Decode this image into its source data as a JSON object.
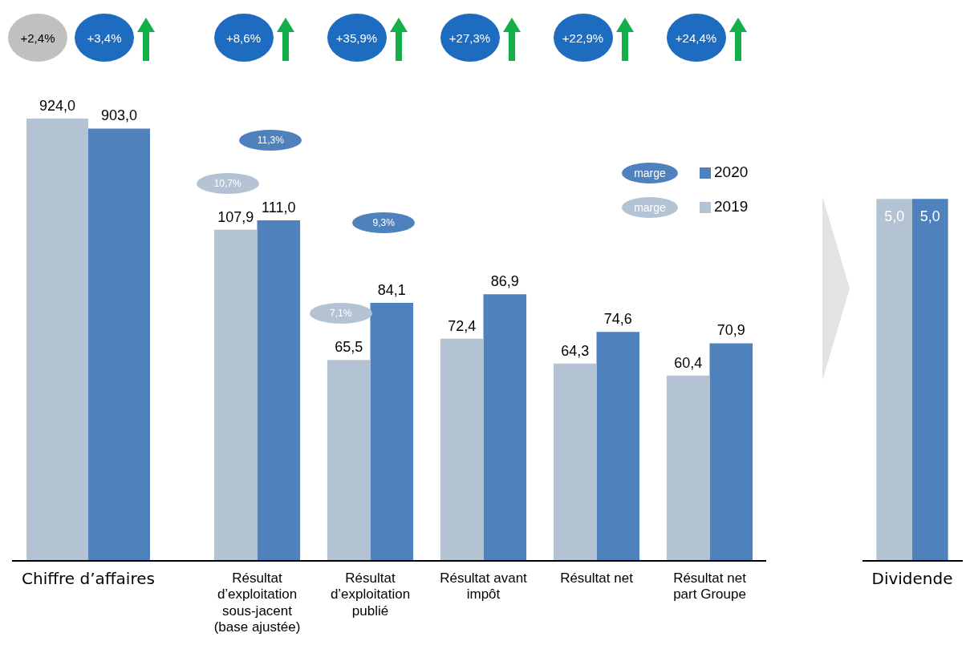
{
  "chart_data": [
    {
      "type": "bar",
      "categories": [
        "Chiffre d’affaires"
      ],
      "series": [
        {
          "color": "#b4c3d3",
          "values": [
            924.0
          ],
          "value_labels": [
            "924,0"
          ]
        },
        {
          "color": "#4f81bd",
          "values": [
            903.0
          ],
          "value_labels": [
            "903,0"
          ]
        }
      ],
      "annotations": [
        "+2,4%",
        "+3,4%"
      ],
      "grid": false,
      "legend": false
    },
    {
      "type": "bar",
      "categories": [
        "Résultat d’exploitation sous-jacent (base ajustée)",
        "Résultat d’exploitation publié",
        "Résultat avant impôt",
        "Résultat net",
        "Résultat net part Groupe"
      ],
      "series": [
        {
          "name": "2019",
          "color": "#b4c3d3",
          "values": [
            107.9,
            65.5,
            72.4,
            64.3,
            60.4
          ],
          "value_labels": [
            "107,9",
            "65,5",
            "72,4",
            "64,3",
            "60,4"
          ]
        },
        {
          "name": "2020",
          "color": "#4f81bd",
          "values": [
            111.0,
            84.1,
            86.9,
            74.6,
            70.9
          ],
          "value_labels": [
            "111,0",
            "84,1",
            "86,9",
            "74,6",
            "70,9"
          ]
        }
      ],
      "legend_title": "marge",
      "legend": "top right",
      "annotations": [
        "+8,6%",
        "+35,9%",
        "+27,3%",
        "+22,9%",
        "+24,4%",
        "10,7%",
        "11,3%",
        "7,1%",
        "9,3%"
      ],
      "grid": false
    },
    {
      "type": "bar",
      "categories": [
        "Dividende"
      ],
      "series": [
        {
          "color": "#b4c3d3",
          "values": [
            5.0
          ],
          "value_labels": [
            "5,0"
          ]
        },
        {
          "color": "#4f81bd",
          "values": [
            5.0
          ],
          "value_labels": [
            "5,0"
          ]
        }
      ],
      "grid": false,
      "legend": false
    }
  ]
}
